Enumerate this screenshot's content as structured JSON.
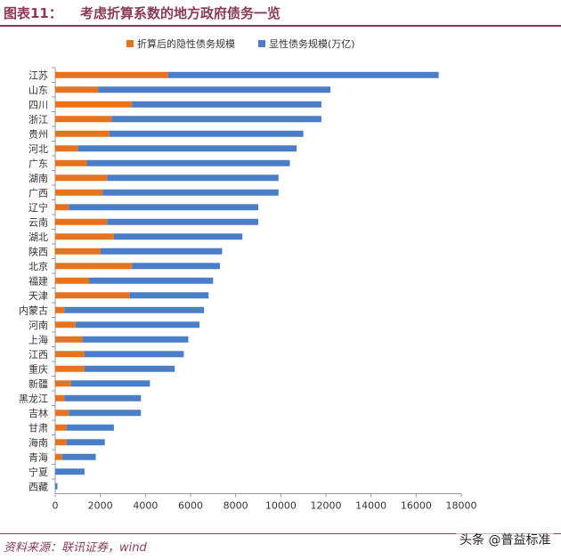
{
  "header": {
    "figure_label": "图表11：",
    "title": "考虑折算系数的地方政府债务一览"
  },
  "footer": {
    "source": "资料来源：联讯证券，wind",
    "watermark": "头条 @普益标准"
  },
  "colors": {
    "implicit": "#e8731f",
    "explicit": "#4a7ec8",
    "title": "#8a3b54",
    "axis": "#999999"
  },
  "chart_data": {
    "type": "bar",
    "orientation": "horizontal",
    "stacked": true,
    "categories": [
      "江苏",
      "山东",
      "四川",
      "浙江",
      "贵州",
      "河北",
      "广东",
      "湖南",
      "广西",
      "辽宁",
      "云南",
      "湖北",
      "陕西",
      "北京",
      "福建",
      "天津",
      "内蒙古",
      "河南",
      "上海",
      "江西",
      "重庆",
      "新疆",
      "黑龙江",
      "吉林",
      "甘肃",
      "海南",
      "青海",
      "宁夏",
      "西藏"
    ],
    "series": [
      {
        "name": "折算后的隐性债务规模",
        "color": "#e8731f",
        "values": [
          5000,
          1900,
          3400,
          2500,
          2400,
          1000,
          1400,
          2300,
          2100,
          600,
          2300,
          2600,
          2000,
          3400,
          1500,
          3300,
          400,
          900,
          1200,
          1300,
          1300,
          700,
          400,
          600,
          500,
          500,
          300,
          0,
          0
        ]
      },
      {
        "name": "显性债务规模(万亿)",
        "color": "#4a7ec8",
        "values": [
          12000,
          10300,
          8400,
          9300,
          8600,
          9700,
          9000,
          7600,
          7800,
          8400,
          6700,
          5700,
          5400,
          3900,
          5500,
          3500,
          6200,
          5500,
          4700,
          4400,
          4000,
          3500,
          3400,
          3200,
          2100,
          1700,
          1500,
          1300,
          100
        ]
      }
    ],
    "xlim": [
      0,
      18000
    ],
    "xticks": [
      0,
      2000,
      4000,
      6000,
      8000,
      10000,
      12000,
      14000,
      16000,
      18000
    ],
    "legend_position": "top",
    "grid": false
  }
}
